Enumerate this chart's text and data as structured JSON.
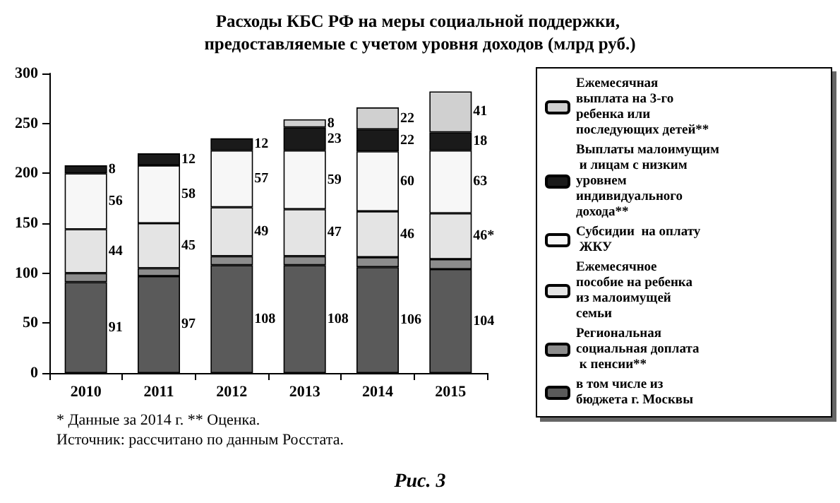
{
  "chart_data": {
    "type": "bar",
    "stacked": true,
    "title": "Расходы КБС РФ на меры социальной поддержки, предоставляемые с учетом уровня доходов (млрд руб.)",
    "categories": [
      "2010",
      "2011",
      "2012",
      "2013",
      "2014",
      "2015"
    ],
    "series": [
      {
        "name": "в том числе из бюджета г. Москвы",
        "color": "#5a5a5a",
        "values": [
          91,
          97,
          108,
          108,
          106,
          104
        ],
        "value_labels": [
          "91",
          "97",
          "108",
          "108",
          "106",
          "104"
        ]
      },
      {
        "name": "Региональная социальная доплата к пенсии**",
        "color": "#8c8c8c",
        "values": [
          9,
          8,
          9,
          9,
          10,
          10
        ]
      },
      {
        "name": "Ежемесячное пособие на ребенка из малоимущей семьи",
        "color": "#e4e4e4",
        "values": [
          44,
          45,
          49,
          47,
          46,
          46
        ],
        "value_labels": [
          "44",
          "45",
          "49",
          "47",
          "46",
          "46*"
        ]
      },
      {
        "name": "Субсидии  на оплату ЖКУ",
        "color": "#f7f7f7",
        "values": [
          56,
          58,
          57,
          59,
          60,
          63
        ],
        "value_labels": [
          "56",
          "58",
          "57",
          "59",
          "60",
          "63"
        ]
      },
      {
        "name": "Выплаты малоимущим и лицам с низким уровнем индивидуального дохода**",
        "color": "#1a1a1a",
        "values": [
          8,
          12,
          12,
          23,
          22,
          18
        ],
        "value_labels": [
          "8",
          "12",
          "12",
          "23",
          "22",
          "18"
        ]
      },
      {
        "name": "Ежемесячная выплата на 3-го ребенка или последующих детей**",
        "color": "#d0d0d0",
        "values": [
          null,
          null,
          null,
          8,
          22,
          41
        ],
        "value_labels": [
          null,
          null,
          null,
          "8",
          "22",
          "41"
        ]
      }
    ],
    "ylim": [
      0,
      300
    ],
    "yticks": [
      0,
      50,
      100,
      150,
      200,
      250,
      300
    ],
    "grid": false,
    "legend": "right",
    "annotations": [
      "* Данные за 2014 г. ** Оценка.",
      "Источник: рассчитано по данным Росстата.",
      "Рис. 3"
    ]
  }
}
